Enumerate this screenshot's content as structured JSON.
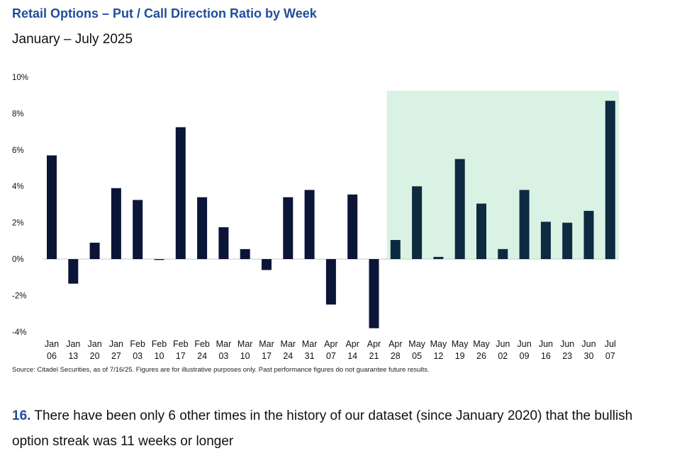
{
  "title": "Retail Options – Put / Call Direction Ratio by Week",
  "subtitle": "January – July 2025",
  "source": "Source: Citadel Securities, as of 7/16/25. Figures are for illustrative purposes only. Past performance figures do not guarantee future results.",
  "note": {
    "number": "16.",
    "text": "There have been only 6 other times in the history of our dataset (since January 2020) that the bullish option streak was 11 weeks or longer"
  },
  "colors": {
    "bar": "#0b1538",
    "bar_highlight": "#0c2a40",
    "highlight_bg": "#d9f2e3",
    "title": "#1f4e9c"
  },
  "chart_data": {
    "type": "bar",
    "title": "Retail Options – Put / Call Direction Ratio by Week",
    "subtitle": "January – July 2025",
    "categories": [
      [
        "Jan",
        "06"
      ],
      [
        "Jan",
        "13"
      ],
      [
        "Jan",
        "20"
      ],
      [
        "Jan",
        "27"
      ],
      [
        "Feb",
        "03"
      ],
      [
        "Feb",
        "10"
      ],
      [
        "Feb",
        "17"
      ],
      [
        "Feb",
        "24"
      ],
      [
        "Mar",
        "03"
      ],
      [
        "Mar",
        "10"
      ],
      [
        "Mar",
        "17"
      ],
      [
        "Mar",
        "24"
      ],
      [
        "Mar",
        "31"
      ],
      [
        "Apr",
        "07"
      ],
      [
        "Apr",
        "14"
      ],
      [
        "Apr",
        "21"
      ],
      [
        "Apr",
        "28"
      ],
      [
        "May",
        "05"
      ],
      [
        "May",
        "12"
      ],
      [
        "May",
        "19"
      ],
      [
        "May",
        "26"
      ],
      [
        "Jun",
        "02"
      ],
      [
        "Jun",
        "09"
      ],
      [
        "Jun",
        "16"
      ],
      [
        "Jun",
        "23"
      ],
      [
        "Jun",
        "30"
      ],
      [
        "Jul",
        "07"
      ]
    ],
    "values": [
      5.7,
      -1.35,
      0.9,
      3.9,
      3.25,
      -0.05,
      7.25,
      3.4,
      1.75,
      0.55,
      -0.6,
      3.4,
      3.8,
      -2.5,
      3.55,
      -3.8,
      1.05,
      4.0,
      0.12,
      5.5,
      3.05,
      0.55,
      3.8,
      2.05,
      2.0,
      2.65,
      8.7
    ],
    "highlight_from_index": 16,
    "yticks": [
      "10%",
      "8%",
      "6%",
      "4%",
      "2%",
      "0%",
      "-2%",
      "-4%"
    ],
    "ytick_values": [
      10,
      8,
      6,
      4,
      2,
      0,
      -2,
      -4
    ],
    "ylim": [
      -4,
      10
    ],
    "xlabel": "",
    "ylabel": "",
    "grid": false
  }
}
